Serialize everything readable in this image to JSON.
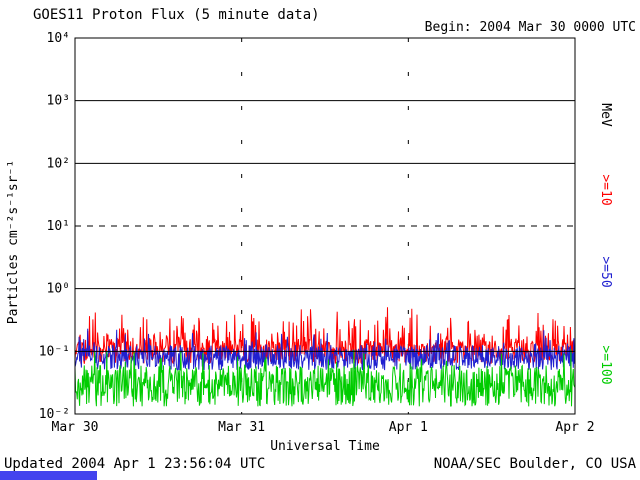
{
  "chart_data": {
    "type": "line",
    "title": "GOES11 Proton Flux (5 minute data)",
    "begin_label": "Begin: 2004 Mar 30 0000 UTC",
    "xlabel": "Universal Time",
    "ylabel": "Particles  cm⁻²s⁻¹sr⁻¹",
    "unit_label": "MeV",
    "x_ticks": [
      "Mar 30",
      "Mar 31",
      "Apr 1",
      "Apr 2"
    ],
    "y_ticks": [
      "10⁴",
      "10³",
      "10²",
      "10¹",
      "10⁰",
      "10⁻¹",
      "10⁻²"
    ],
    "y_log_range": [
      -2,
      4
    ],
    "days": 3,
    "points_per_day": 288,
    "cadence_minutes": 5,
    "grid": {
      "dashed_decade": 1,
      "solid_decades": [
        3,
        2,
        0,
        -1
      ],
      "day_boundaries_dotted": true
    },
    "series": [
      {
        "name": ">=10",
        "color": "#ff0000",
        "typical_flux": 0.11,
        "base_log10": -1.0,
        "noise_log10": 0.2,
        "spike_prob": 0.25,
        "spike_max_log10": 0.55,
        "seed": 101
      },
      {
        "name": ">=50",
        "color": "#2020d0",
        "typical_flux": 0.08,
        "base_log10": -1.1,
        "noise_log10": 0.2,
        "spike_prob": 0.12,
        "spike_max_log10": 0.35,
        "seed": 202
      },
      {
        "name": ">=100",
        "color": "#00cc00",
        "typical_flux": 0.03,
        "base_log10": -1.55,
        "noise_log10": 0.33,
        "spike_prob": 0.1,
        "spike_max_log10": 0.3,
        "seed": 303
      }
    ]
  },
  "footer": {
    "updated": "Updated 2004 Apr  1 23:56:04 UTC",
    "credit": "NOAA/SEC Boulder, CO USA",
    "bar_color": "#4444ee"
  }
}
